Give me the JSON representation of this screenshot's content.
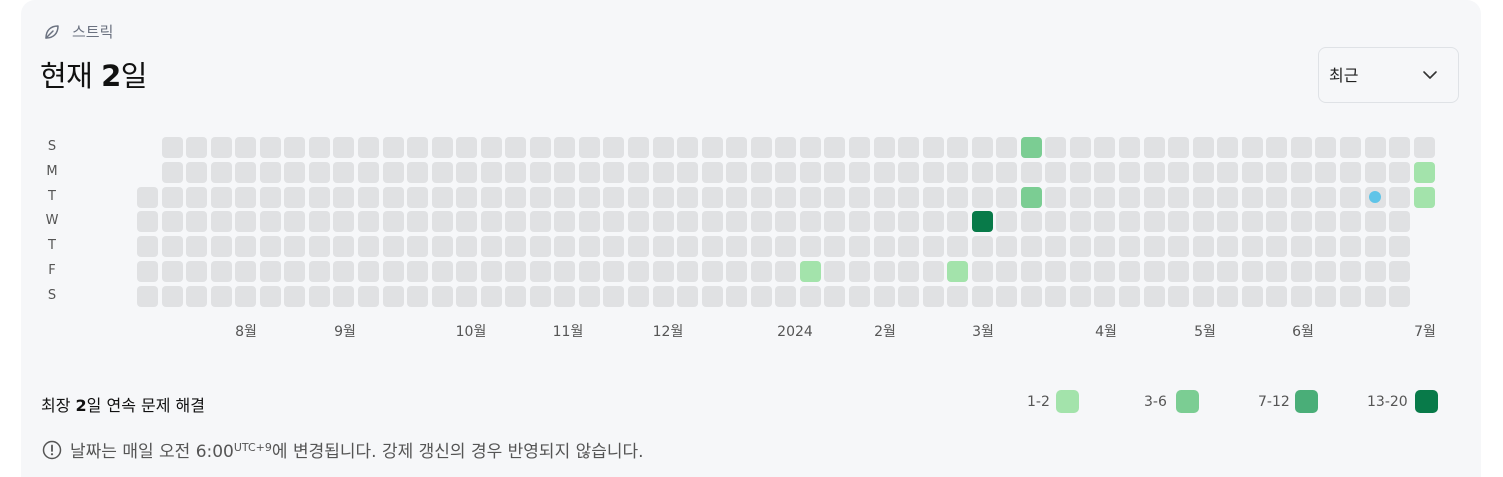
{
  "header": {
    "section_label": "스트릭",
    "title_prefix": "현재 ",
    "title_value": "2",
    "title_suffix": "일"
  },
  "period_select": {
    "selected": "최근"
  },
  "day_labels": [
    "S",
    "M",
    "T",
    "W",
    "T",
    "F",
    "S"
  ],
  "months": [
    "8월",
    "9월",
    "10월",
    "11월",
    "12월",
    "2024",
    "2월",
    "3월",
    "4월",
    "5월",
    "6월",
    "7월"
  ],
  "streak_grid": {
    "weeks": 53,
    "levels": [
      {
        "week": 27,
        "day": 5,
        "level": 1
      },
      {
        "week": 33,
        "day": 5,
        "level": 1
      },
      {
        "week": 34,
        "day": 3,
        "level": 4
      },
      {
        "week": 36,
        "day": 0,
        "level": 2
      },
      {
        "week": 36,
        "day": 2,
        "level": 2
      },
      {
        "week": 52,
        "day": 1,
        "level": 1
      },
      {
        "week": 52,
        "day": 2,
        "level": 1
      }
    ],
    "today": {
      "week": 50,
      "day": 2
    }
  },
  "longest": {
    "prefix": "최장 ",
    "value": "2",
    "suffix": "일 연속 문제 해결"
  },
  "legend": [
    {
      "label": "1-2",
      "color": "#a3e3ab"
    },
    {
      "label": "3-6",
      "color": "#7bcd93"
    },
    {
      "label": "7-12",
      "color": "#4aae78"
    },
    {
      "label": "13-20",
      "color": "#087a49"
    }
  ],
  "note": {
    "before": "날짜는 매일 오전 6:00",
    "sup": "UTC+9",
    "after": "에 변경됩니다. 강제 갱신의 경우 반영되지 않습니다."
  },
  "icons": {
    "section": "leaf-icon",
    "dropdown": "chevron-down-icon",
    "note": "info-circle-icon"
  }
}
